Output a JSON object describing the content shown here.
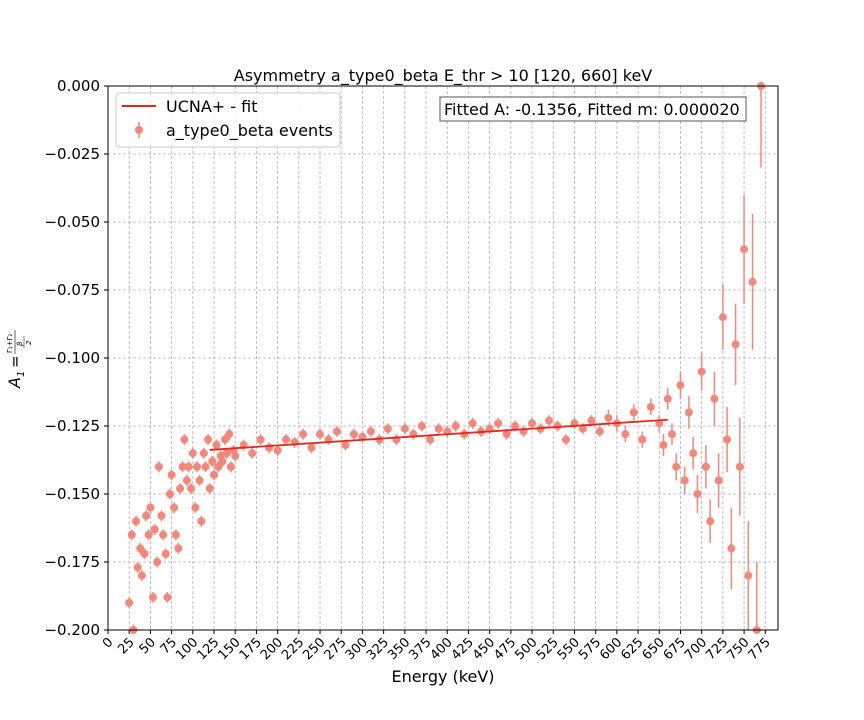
{
  "chart_data": {
    "type": "scatter",
    "title": "Asymmetry a_type0_beta E_thr > 10 [120, 660] keV",
    "xlabel": "Energy (keV)",
    "ylabel_main": "A",
    "ylabel_sub": "1",
    "ylabel_num": "Γ₁+Γ₂",
    "ylabel_den_top": "β",
    "ylabel_den_bottom": "2",
    "xlim": [
      0,
      790
    ],
    "ylim": [
      -0.2,
      0.0
    ],
    "xticks": [
      "0",
      "25",
      "50",
      "75",
      "100",
      "125",
      "150",
      "175",
      "200",
      "225",
      "250",
      "275",
      "300",
      "325",
      "350",
      "375",
      "400",
      "425",
      "450",
      "475",
      "500",
      "525",
      "550",
      "575",
      "600",
      "625",
      "650",
      "675",
      "700",
      "725",
      "750",
      "775"
    ],
    "yticks": [
      "0.000",
      "−0.025",
      "−0.050",
      "−0.075",
      "−0.100",
      "−0.125",
      "−0.150",
      "−0.175",
      "−0.200"
    ],
    "grid": true,
    "legend_position": "top-left",
    "annotation": "Fitted A: -0.1356, Fitted m: 0.000020",
    "colors": {
      "points": "#f4877a",
      "fit": "#e8261a"
    },
    "series": [
      {
        "name": "UCNA+ - fit",
        "kind": "line",
        "x": [
          120,
          660
        ],
        "y": [
          -0.1338,
          -0.1227
        ]
      },
      {
        "name": "a_type0_beta events",
        "kind": "scatter_errorbar",
        "x": [
          25,
          28,
          30,
          33,
          35,
          38,
          40,
          43,
          45,
          48,
          50,
          53,
          55,
          58,
          60,
          63,
          65,
          68,
          70,
          73,
          75,
          78,
          80,
          83,
          85,
          88,
          90,
          93,
          95,
          98,
          100,
          103,
          105,
          108,
          110,
          113,
          115,
          118,
          120,
          123,
          125,
          128,
          130,
          133,
          135,
          138,
          140,
          143,
          145,
          148,
          150,
          160,
          170,
          180,
          190,
          200,
          210,
          220,
          230,
          240,
          250,
          260,
          270,
          280,
          290,
          300,
          310,
          320,
          330,
          340,
          350,
          360,
          370,
          380,
          390,
          400,
          410,
          420,
          430,
          440,
          450,
          460,
          470,
          480,
          490,
          500,
          510,
          520,
          530,
          540,
          550,
          560,
          570,
          580,
          590,
          600,
          610,
          620,
          630,
          640,
          650,
          655,
          660,
          665,
          670,
          675,
          680,
          685,
          690,
          695,
          700,
          705,
          710,
          715,
          720,
          725,
          730,
          735,
          740,
          745,
          750,
          755,
          760,
          765,
          770
        ],
        "y": [
          -0.19,
          -0.165,
          -0.2,
          -0.16,
          -0.177,
          -0.17,
          -0.18,
          -0.172,
          -0.158,
          -0.165,
          -0.155,
          -0.188,
          -0.163,
          -0.175,
          -0.14,
          -0.158,
          -0.165,
          -0.172,
          -0.188,
          -0.15,
          -0.143,
          -0.155,
          -0.165,
          -0.17,
          -0.148,
          -0.14,
          -0.13,
          -0.145,
          -0.14,
          -0.148,
          -0.135,
          -0.155,
          -0.14,
          -0.145,
          -0.16,
          -0.135,
          -0.14,
          -0.13,
          -0.148,
          -0.138,
          -0.143,
          -0.132,
          -0.14,
          -0.136,
          -0.138,
          -0.13,
          -0.135,
          -0.128,
          -0.14,
          -0.134,
          -0.136,
          -0.132,
          -0.135,
          -0.13,
          -0.133,
          -0.134,
          -0.13,
          -0.131,
          -0.128,
          -0.133,
          -0.128,
          -0.13,
          -0.127,
          -0.132,
          -0.128,
          -0.129,
          -0.127,
          -0.13,
          -0.126,
          -0.13,
          -0.126,
          -0.128,
          -0.125,
          -0.13,
          -0.126,
          -0.127,
          -0.125,
          -0.128,
          -0.124,
          -0.127,
          -0.126,
          -0.124,
          -0.128,
          -0.125,
          -0.127,
          -0.124,
          -0.126,
          -0.123,
          -0.125,
          -0.13,
          -0.124,
          -0.126,
          -0.123,
          -0.127,
          -0.122,
          -0.124,
          -0.128,
          -0.12,
          -0.13,
          -0.118,
          -0.124,
          -0.132,
          -0.115,
          -0.128,
          -0.14,
          -0.11,
          -0.145,
          -0.12,
          -0.135,
          -0.15,
          -0.105,
          -0.14,
          -0.16,
          -0.115,
          -0.145,
          -0.085,
          -0.13,
          -0.17,
          -0.095,
          -0.14,
          -0.06,
          -0.18,
          -0.072,
          -0.2,
          -0.0
        ],
        "yerr": [
          0.002,
          0.002,
          0.002,
          0.002,
          0.002,
          0.002,
          0.002,
          0.002,
          0.002,
          0.002,
          0.002,
          0.002,
          0.002,
          0.002,
          0.002,
          0.002,
          0.002,
          0.002,
          0.002,
          0.002,
          0.002,
          0.002,
          0.002,
          0.002,
          0.002,
          0.002,
          0.002,
          0.002,
          0.002,
          0.002,
          0.002,
          0.002,
          0.002,
          0.002,
          0.002,
          0.002,
          0.002,
          0.002,
          0.002,
          0.002,
          0.002,
          0.002,
          0.002,
          0.002,
          0.002,
          0.002,
          0.002,
          0.002,
          0.002,
          0.002,
          0.002,
          0.002,
          0.002,
          0.002,
          0.002,
          0.002,
          0.002,
          0.002,
          0.002,
          0.002,
          0.002,
          0.002,
          0.002,
          0.002,
          0.002,
          0.002,
          0.002,
          0.002,
          0.002,
          0.002,
          0.002,
          0.002,
          0.002,
          0.002,
          0.002,
          0.002,
          0.002,
          0.002,
          0.002,
          0.002,
          0.002,
          0.002,
          0.002,
          0.002,
          0.002,
          0.002,
          0.002,
          0.002,
          0.002,
          0.002,
          0.002,
          0.002,
          0.002,
          0.002,
          0.003,
          0.003,
          0.003,
          0.003,
          0.003,
          0.003,
          0.003,
          0.004,
          0.004,
          0.004,
          0.005,
          0.005,
          0.005,
          0.006,
          0.006,
          0.007,
          0.007,
          0.008,
          0.008,
          0.01,
          0.01,
          0.012,
          0.012,
          0.015,
          0.015,
          0.018,
          0.02,
          0.02,
          0.025,
          0.025,
          0.03
        ]
      }
    ]
  }
}
